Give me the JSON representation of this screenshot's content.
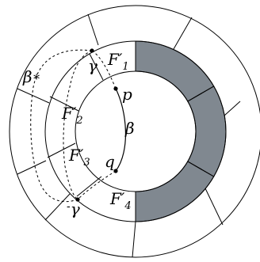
{
  "labels": {
    "F1": "F′",
    "F1_sub": "1",
    "F2": "F′",
    "F2_sub": "2",
    "F3": "F′",
    "F3_sub": "3",
    "F4": "F′",
    "F4_sub": "4",
    "p": "p",
    "q": "q",
    "beta": "β",
    "beta_star": "β",
    "beta_star_sub": "∗",
    "gamma_top": "γ",
    "gamma_bottom": "γ",
    "gamma_bottom_prefix": "-"
  },
  "colors": {
    "stroke": "#000000",
    "shaded": "#808890",
    "background": "#ffffff"
  }
}
